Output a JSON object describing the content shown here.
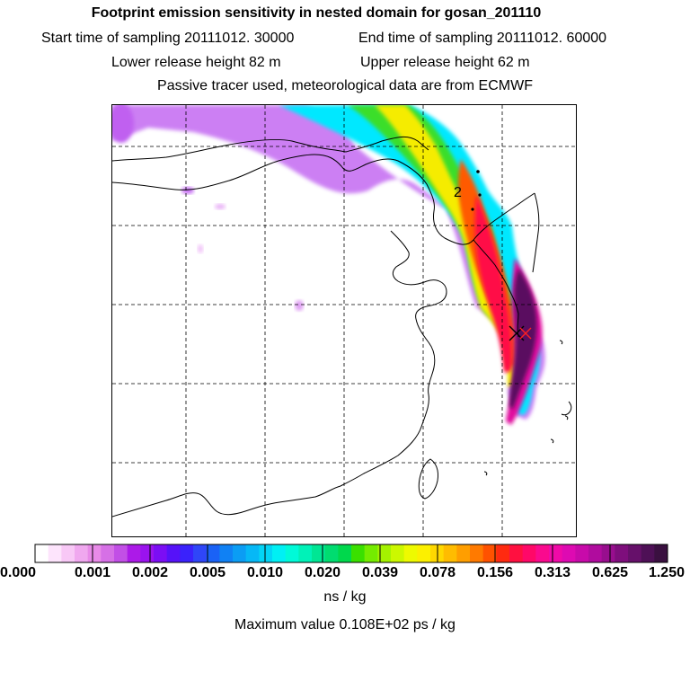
{
  "chart_data": {
    "type": "heatmap",
    "title": "Footprint emission sensitivity in nested domain for gosan_201110",
    "subtitle_lines": {
      "start": "Start time of sampling 20111012. 30000",
      "end": "End time of sampling 20111012. 60000",
      "lower": "Lower release height   82 m",
      "upper": "Upper release height   62 m",
      "tracer": "Passive tracer used, meteorological data are from ECMWF"
    },
    "colorbar": {
      "tick_labels": [
        "0.000",
        "0.001",
        "0.002",
        "0.005",
        "0.010",
        "0.020",
        "0.039",
        "0.078",
        "0.156",
        "0.313",
        "0.625",
        "1.250"
      ],
      "unit": "ns / kg",
      "colors": [
        "#ffffff",
        "#fde4fc",
        "#f8c8f6",
        "#f0a8ef",
        "#e88ae8",
        "#d670e6",
        "#c24fe6",
        "#ac1ae8",
        "#9a13ee",
        "#7b0ef4",
        "#5612f8",
        "#3a22fc",
        "#2f46f8",
        "#1a62f6",
        "#1081f4",
        "#0b9df4",
        "#06b8f6",
        "#03d4f6",
        "#00f0f4",
        "#00fad8",
        "#00f2b8",
        "#00e694",
        "#00dc70",
        "#00d84c",
        "#3ae000",
        "#74ec00",
        "#a4f200",
        "#ccf800",
        "#eefa00",
        "#fcf000",
        "#ffd800",
        "#ffbc00",
        "#ff9e00",
        "#ff7a00",
        "#ff5200",
        "#ff2a10",
        "#ff1040",
        "#ff0868",
        "#fa0a8e",
        "#f00aa8",
        "#de0ab2",
        "#c80aaa",
        "#b00c9e",
        "#980e8e",
        "#7e0e7c",
        "#66106a",
        "#4e1056",
        "#3a1040"
      ]
    },
    "max_value": "Maximum value  0.108E+02 ps / kg",
    "plume_label": "2"
  }
}
